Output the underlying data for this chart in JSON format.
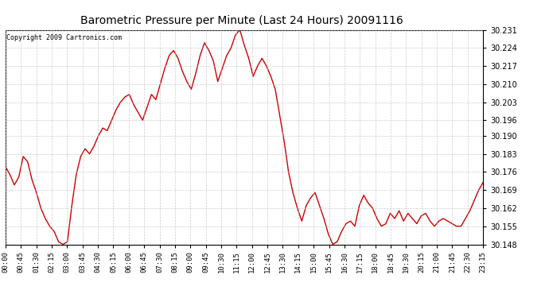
{
  "title": "Barometric Pressure per Minute (Last 24 Hours) 20091116",
  "copyright": "Copyright 2009 Cartronics.com",
  "line_color": "#cc0000",
  "background_color": "#ffffff",
  "grid_color": "#c0c0c0",
  "ylim": [
    30.148,
    30.231
  ],
  "yticks": [
    30.148,
    30.155,
    30.162,
    30.169,
    30.176,
    30.183,
    30.19,
    30.196,
    30.203,
    30.21,
    30.217,
    30.224,
    30.231
  ],
  "xtick_labels": [
    "00:00",
    "00:45",
    "01:30",
    "02:15",
    "03:00",
    "03:45",
    "04:30",
    "05:15",
    "06:00",
    "06:45",
    "07:30",
    "08:15",
    "09:00",
    "09:45",
    "10:30",
    "11:15",
    "12:00",
    "12:45",
    "13:30",
    "14:15",
    "15:00",
    "15:45",
    "16:30",
    "17:15",
    "18:00",
    "18:45",
    "19:30",
    "20:15",
    "21:00",
    "21:45",
    "22:30",
    "23:15"
  ],
  "pressure_data": [
    30.178,
    30.175,
    30.171,
    30.174,
    30.182,
    30.18,
    30.173,
    30.168,
    30.162,
    30.158,
    30.155,
    30.153,
    30.149,
    30.148,
    30.149,
    30.163,
    30.175,
    30.182,
    30.185,
    30.183,
    30.186,
    30.19,
    30.193,
    30.192,
    30.196,
    30.2,
    30.203,
    30.205,
    30.206,
    30.202,
    30.199,
    30.196,
    30.201,
    30.206,
    30.204,
    30.21,
    30.216,
    30.221,
    30.223,
    30.22,
    30.215,
    30.211,
    30.208,
    30.214,
    30.221,
    30.226,
    30.223,
    30.219,
    30.211,
    30.216,
    30.221,
    30.224,
    30.229,
    30.231,
    30.225,
    30.22,
    30.213,
    30.217,
    30.22,
    30.217,
    30.213,
    30.208,
    30.198,
    30.188,
    30.176,
    30.168,
    30.162,
    30.157,
    30.163,
    30.166,
    30.168,
    30.163,
    30.158,
    30.152,
    30.148,
    30.149,
    30.153,
    30.156,
    30.157,
    30.155,
    30.163,
    30.167,
    30.164,
    30.162,
    30.158,
    30.155,
    30.156,
    30.16,
    30.158,
    30.161,
    30.157,
    30.16,
    30.158,
    30.156,
    30.159,
    30.16,
    30.157,
    30.155,
    30.157,
    30.158,
    30.157,
    30.156,
    30.155,
    30.155,
    30.158,
    30.161,
    30.165,
    30.169,
    30.172
  ]
}
